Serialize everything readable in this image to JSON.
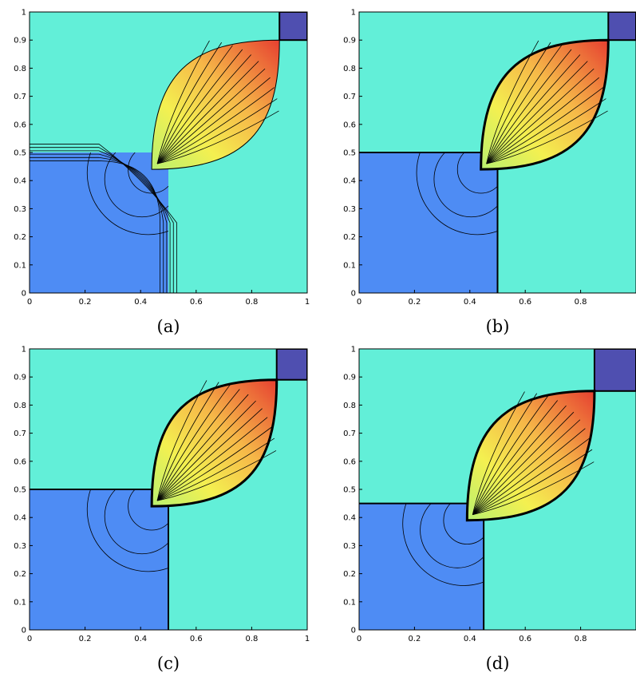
{
  "panels": [
    {
      "caption": "(a)",
      "xlim": [
        0,
        1
      ],
      "ylim": [
        0,
        1
      ],
      "xticks": [
        0,
        0.2,
        0.4,
        0.6,
        0.8,
        1
      ],
      "yticks": [
        0,
        0.1,
        0.2,
        0.3,
        0.4,
        0.5,
        0.6,
        0.7,
        0.8,
        0.9,
        1
      ]
    },
    {
      "caption": "(b)",
      "xlim": [
        0,
        1
      ],
      "ylim": [
        0,
        1
      ],
      "xticks": [
        0,
        0.2,
        0.4,
        0.6,
        0.8
      ],
      "yticks": [
        0,
        0.1,
        0.2,
        0.3,
        0.4,
        0.5,
        0.6,
        0.7,
        0.8,
        0.9,
        1
      ]
    },
    {
      "caption": "(c)",
      "xlim": [
        0,
        1
      ],
      "ylim": [
        0,
        1
      ],
      "xticks": [
        0,
        0.2,
        0.4,
        0.6,
        0.8,
        1
      ],
      "yticks": [
        0,
        0.1,
        0.2,
        0.3,
        0.4,
        0.5,
        0.6,
        0.7,
        0.8,
        0.9,
        1
      ]
    },
    {
      "caption": "(d)",
      "xlim": [
        0,
        1
      ],
      "ylim": [
        0,
        1
      ],
      "xticks": [
        0,
        0.2,
        0.4,
        0.6,
        0.8
      ],
      "yticks": [
        0,
        0.1,
        0.2,
        0.3,
        0.4,
        0.5,
        0.6,
        0.7,
        0.8,
        0.9,
        1
      ]
    }
  ]
}
